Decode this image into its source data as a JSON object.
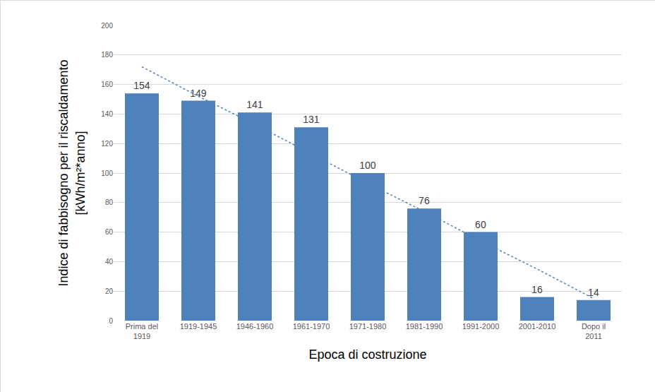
{
  "chart_data": {
    "type": "bar",
    "x_label": "Epoca di costruzione",
    "y_label": "Indice di fabbisogno per il riscaldamento\n[kWh/m²*anno]",
    "categories": [
      "Prima del\n1919",
      "1919-1945",
      "1946-1960",
      "1961-1970",
      "1971-1980",
      "1981-1990",
      "1991-2000",
      "2001-2010",
      "Dopo il\n2011"
    ],
    "series": [
      {
        "type": "bar",
        "color": "#4f81bd",
        "values": [
          154,
          149,
          141,
          131,
          100,
          76,
          60,
          16,
          14
        ]
      },
      {
        "type": "line",
        "color": "#4f81bd",
        "line_style": "dotted",
        "values": [
          172,
          152,
          133,
          113,
          93,
          74,
          54,
          35,
          15
        ]
      }
    ],
    "ylim": [
      0,
      200
    ],
    "yticks": [
      0,
      20,
      40,
      60,
      80,
      100,
      120,
      140,
      160,
      180,
      200
    ],
    "grid": true,
    "data_labels": true
  }
}
